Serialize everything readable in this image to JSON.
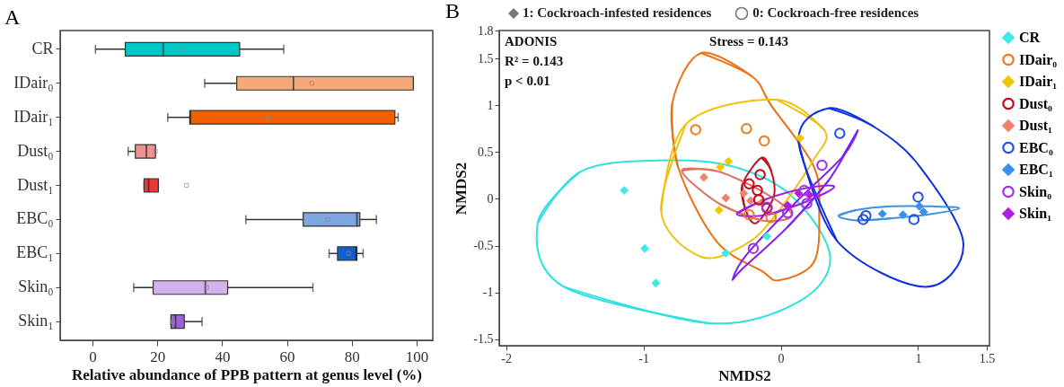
{
  "chart_data": [
    {
      "type": "box",
      "title": "A",
      "orientation": "horizontal",
      "xlabel": "Relative abundance of PPB pattern at genus level (%)",
      "xlim": [
        -10,
        105
      ],
      "xticks": [
        0,
        20,
        40,
        60,
        80,
        100
      ],
      "categories": [
        "CR",
        "IDair₀",
        "IDair₁",
        "Dust₀",
        "Dust₁",
        "EBC₀",
        "EBC₁",
        "Skin₀",
        "Skin₁"
      ],
      "colors": [
        "#00c8c8",
        "#f5a878",
        "#f06000",
        "#f09090",
        "#e83838",
        "#7ea6e0",
        "#1060d0",
        "#d4b0ec",
        "#a060d8"
      ],
      "boxes": [
        {
          "low": 0.9,
          "q1": 10.1,
          "median": 21.8,
          "q3": 45.4,
          "high": 59,
          "mean": 27.4
        },
        {
          "low": 34.6,
          "q1": 44.5,
          "median": 62,
          "q3": 99,
          "high": 99,
          "mean": 67.7
        },
        {
          "low": 23.2,
          "q1": 30,
          "median": 30.2,
          "q3": 93.3,
          "high": 94.3,
          "mean": 54.2
        },
        {
          "low": 11,
          "q1": 13.2,
          "median": 16.6,
          "q3": 19.4,
          "high": 19.4,
          "mean": 19.4
        },
        {
          "low": 15.9,
          "q1": 15.9,
          "median": 17.3,
          "q3": 20.3,
          "high": 20.3,
          "mean": 29
        },
        {
          "low": 47.3,
          "q1": 65,
          "median": 81.6,
          "q3": 82.5,
          "high": 87.6,
          "mean": 72.6
        },
        {
          "low": 73,
          "q1": 75.6,
          "median": 81.3,
          "q3": 81.6,
          "high": 83.5,
          "mean": 79
        },
        {
          "low": 12.7,
          "q1": 18.7,
          "median": 34.8,
          "q3": 41.7,
          "high": 68,
          "mean": 35.2
        },
        {
          "low": 24.2,
          "q1": 24.2,
          "median": 25.6,
          "q3": 28.3,
          "high": 33.8,
          "mean": 24.8
        }
      ]
    },
    {
      "type": "scatter",
      "title": "B",
      "xlabel": "NMDS2",
      "ylabel": "NMDS2",
      "xlim": [
        -2.05,
        1.52
      ],
      "ylim": [
        -1.57,
        1.8
      ],
      "xticks": [
        -2,
        -1,
        0,
        1,
        1.5
      ],
      "yticks": [
        -1.5,
        -1,
        -0.5,
        0,
        0.5,
        1,
        1.5,
        1.8
      ],
      "legend": "right",
      "annotations": [
        "1: Cockroach-infested residences",
        "0: Cockroach-free residences",
        "ADONIS",
        "R² = 0.143",
        "p < 0.01",
        "Stress = 0.143"
      ],
      "series": [
        {
          "name": "CR",
          "color": "#40e8e8",
          "marker": "diamond",
          "x": [
            -1.14,
            -0.99,
            -0.91,
            -0.4,
            -0.1
          ],
          "values": [
            0.09,
            -0.53,
            -0.9,
            -0.58,
            -0.4
          ]
        },
        {
          "name": "IDair₀",
          "color": "#f07820",
          "marker": "circle",
          "x": [
            -0.62,
            -0.25,
            -0.12,
            -0.23,
            -0.07
          ],
          "values": [
            0.74,
            0.75,
            0.62,
            -0.17,
            -0.2
          ]
        },
        {
          "name": "IDair₁",
          "color": "#f0c800",
          "marker": "diamond",
          "x": [
            -0.44,
            -0.38,
            -0.45,
            0.14
          ],
          "values": [
            0.34,
            0.4,
            -0.12,
            0.65
          ]
        },
        {
          "name": "Dust₀",
          "color": "#c80018",
          "marker": "circle",
          "x": [
            -0.15,
            -0.23,
            -0.17,
            -0.16,
            -0.1
          ],
          "values": [
            0.26,
            0.16,
            0.09,
            -0.01,
            -0.1
          ]
        },
        {
          "name": "Dust₁",
          "color": "#f08070",
          "marker": "diamond",
          "x": [
            -0.56,
            -0.4,
            -0.27,
            -0.22,
            -0.14
          ],
          "values": [
            0.23,
            0.01,
            0.06,
            -0.02,
            -0.04
          ]
        },
        {
          "name": "EBC₀",
          "color": "#2050e0",
          "marker": "circle",
          "x": [
            0.43,
            1.0,
            0.62,
            0.6,
            0.97
          ],
          "values": [
            0.7,
            0.02,
            -0.18,
            -0.22,
            -0.22
          ]
        },
        {
          "name": "EBC₁",
          "color": "#3890f0",
          "marker": "diamond",
          "x": [
            0.74,
            0.89,
            1.01,
            1.04
          ],
          "values": [
            -0.16,
            -0.17,
            -0.08,
            -0.14
          ]
        },
        {
          "name": "Skin₀",
          "color": "#a030f0",
          "marker": "circle",
          "x": [
            0.3,
            0.19,
            0.05,
            -0.2,
            -0.1,
            0.17
          ],
          "values": [
            0.36,
            -0.05,
            -0.15,
            -0.53,
            -0.09,
            0.09
          ]
        },
        {
          "name": "Skin₁",
          "color": "#b020d8",
          "marker": "diamond",
          "x": [
            0.13,
            0.05,
            0.21
          ],
          "values": [
            0.06,
            -0.07,
            0.04
          ]
        },
        {
          "type": "line",
          "color": "#30e0e0",
          "x": [
            -1.77,
            -1.46,
            -0.91,
            -0.36,
            0.08,
            0.36,
            0.13,
            -0.52,
            -1.58
          ],
          "values": [
            -0.26,
            0.29,
            0.41,
            0.35,
            0.03,
            -0.62,
            -1.1,
            -1.33,
            -0.94
          ]
        },
        {
          "type": "line",
          "color": "#f07010",
          "x": [
            -0.58,
            -0.21,
            -0.07,
            0.24,
            0.28,
            0.24,
            -0.01,
            -0.14,
            -0.47,
            -0.75,
            -0.79
          ],
          "values": [
            1.56,
            1.31,
            1.0,
            0.35,
            -0.14,
            -0.68,
            -0.87,
            -0.77,
            -0.45,
            0.35,
            1.02
          ]
        },
        {
          "type": "line",
          "color": "#f0c010",
          "x": [
            -0.03,
            0.32,
            0.24,
            -0.03,
            -0.25,
            -0.58,
            -0.87,
            -0.69
          ],
          "values": [
            1.06,
            0.73,
            0.42,
            -0.16,
            -0.48,
            -0.62,
            -0.14,
            0.8
          ]
        },
        {
          "type": "line",
          "color": "#c01020",
          "x": [
            -0.14,
            -0.07,
            -0.05,
            -0.18,
            -0.26,
            -0.28
          ],
          "values": [
            0.44,
            0.3,
            0.03,
            -0.26,
            -0.1,
            0.15
          ]
        },
        {
          "type": "line",
          "color": "#e07060",
          "x": [
            -0.72,
            -0.47,
            -0.1,
            0.08,
            -0.14,
            -0.45
          ],
          "values": [
            0.3,
            0.3,
            0.05,
            -0.18,
            -0.23,
            -0.05
          ]
        },
        {
          "type": "line",
          "color": "#1030e0",
          "x": [
            0.35,
            0.68,
            1.01,
            1.33,
            1.05,
            0.41,
            0.13
          ],
          "values": [
            0.97,
            0.77,
            0.35,
            -0.48,
            -0.94,
            -0.45,
            0.61
          ]
        },
        {
          "type": "line",
          "color": "#4090e0",
          "x": [
            0.42,
            0.55,
            0.8,
            1.1,
            1.3,
            1.1,
            0.8,
            0.55
          ],
          "values": [
            -0.18,
            -0.12,
            -0.08,
            -0.08,
            -0.1,
            -0.16,
            -0.21,
            -0.23
          ]
        },
        {
          "type": "line",
          "color": "#8020f0",
          "x": [
            0.56,
            0.45,
            0.1,
            -0.25,
            -0.35,
            -0.28,
            0.05,
            0.35
          ],
          "values": [
            0.73,
            0.45,
            -0.05,
            -0.6,
            -0.86,
            -0.75,
            -0.3,
            0.2
          ]
        },
        {
          "type": "line",
          "color": "#a020e0",
          "x": [
            -0.32,
            -0.1,
            0.2,
            0.39,
            0.2,
            -0.1
          ],
          "values": [
            -0.16,
            0.0,
            0.12,
            0.13,
            -0.02,
            -0.17
          ]
        }
      ]
    }
  ]
}
